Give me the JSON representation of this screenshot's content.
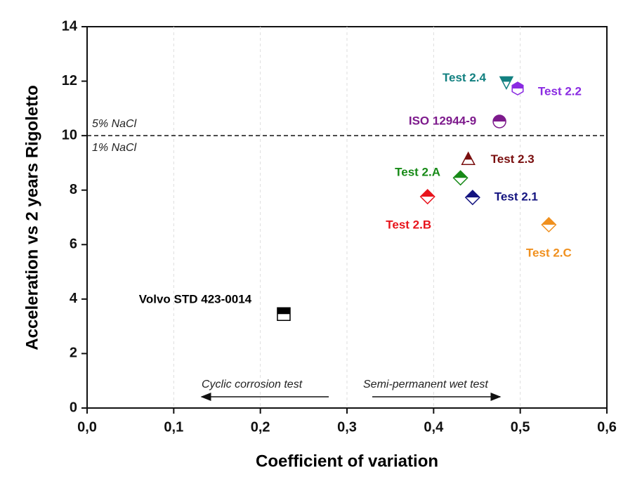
{
  "chart_data": {
    "type": "scatter",
    "xlabel": "Coefficient of variation",
    "ylabel": "Acceleration vs 2 years Rigoletto",
    "xlim": [
      0,
      0.6
    ],
    "ylim": [
      0,
      14
    ],
    "xticks": [
      {
        "value": 0,
        "label": "0,0"
      },
      {
        "value": 0.1,
        "label": "0,1"
      },
      {
        "value": 0.2,
        "label": "0,2"
      },
      {
        "value": 0.3,
        "label": "0,3"
      },
      {
        "value": 0.4,
        "label": "0,4"
      },
      {
        "value": 0.5,
        "label": "0,5"
      },
      {
        "value": 0.6,
        "label": "0,6"
      }
    ],
    "yticks": [
      0,
      2,
      4,
      6,
      8,
      10,
      12,
      14
    ],
    "grid": true,
    "reference_line": {
      "value": 10,
      "label_above": "5% NaCl",
      "label_below": "1% NaCl"
    },
    "annotations": [
      "Cyclic corrosion test",
      "Semi-permanent wet test"
    ],
    "series": [
      {
        "name": "Volvo STD 423-0014",
        "color": "#000000",
        "marker": "square",
        "x": [
          0.227
        ],
        "values": [
          3.45
        ]
      },
      {
        "name": "Test 2.B",
        "color": "#e8141c",
        "marker": "diamond",
        "x": [
          0.393
        ],
        "values": [
          7.76
        ]
      },
      {
        "name": "Test 2.A",
        "color": "#178a17",
        "marker": "diamond",
        "x": [
          0.431
        ],
        "values": [
          8.45
        ]
      },
      {
        "name": "Test 2.1",
        "color": "#141480",
        "marker": "diamond",
        "x": [
          0.445
        ],
        "values": [
          7.73
        ]
      },
      {
        "name": "Test 2.3",
        "color": "#7a0f0f",
        "marker": "triangle-up",
        "x": [
          0.44
        ],
        "values": [
          9.12
        ]
      },
      {
        "name": "Test 2.C",
        "color": "#f0901e",
        "marker": "diamond",
        "x": [
          0.533
        ],
        "values": [
          6.73
        ]
      },
      {
        "name": "ISO 12944-9",
        "color": "#7d1a8c",
        "marker": "circle",
        "x": [
          0.476
        ],
        "values": [
          10.52
        ]
      },
      {
        "name": "Test 2.4",
        "color": "#128080",
        "marker": "triangle-down",
        "x": [
          0.484
        ],
        "values": [
          11.98
        ]
      },
      {
        "name": "Test 2.2",
        "color": "#8a2be2",
        "marker": "hexagon",
        "x": [
          0.497
        ],
        "values": [
          11.73
        ]
      }
    ]
  }
}
